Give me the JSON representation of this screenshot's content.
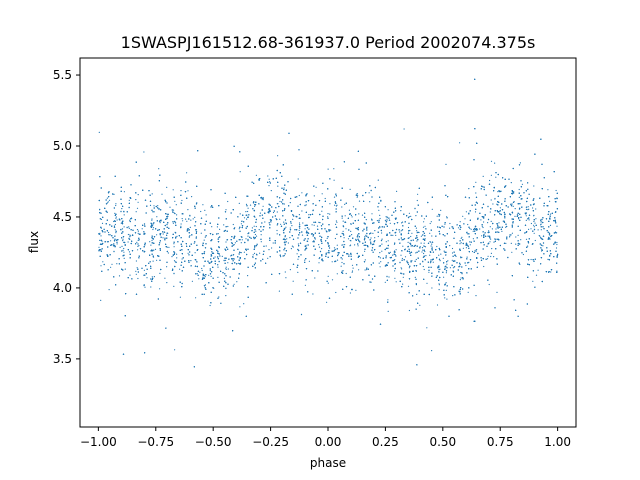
{
  "chart_data": {
    "type": "scatter",
    "title": "1SWASPJ161512.68-361937.0 Period 2002074.375s",
    "xlabel": "phase",
    "ylabel": "flux",
    "xlim": [
      -1.08,
      1.08
    ],
    "ylim": [
      3.02,
      5.62
    ],
    "xticks": [
      -1.0,
      -0.75,
      -0.5,
      -0.25,
      0.0,
      0.25,
      0.5,
      0.75,
      1.0
    ],
    "xtick_labels": [
      "−1.00",
      "−0.75",
      "−0.50",
      "−0.25",
      "0.00",
      "0.25",
      "0.50",
      "0.75",
      "1.00"
    ],
    "yticks": [
      3.5,
      4.0,
      4.5,
      5.0,
      5.5
    ],
    "ytick_labels": [
      "3.5",
      "4.0",
      "4.5",
      "5.0",
      "5.5"
    ],
    "grid": false,
    "series": [
      {
        "color": "#1f77b4",
        "marker_size": 0.6,
        "profile": {
          "phase": [
            -1.0,
            -0.9,
            -0.8,
            -0.7,
            -0.6,
            -0.5,
            -0.45,
            -0.4,
            -0.3,
            -0.2,
            -0.1,
            0.0,
            0.1,
            0.2,
            0.3,
            0.4,
            0.5,
            0.55,
            0.6,
            0.7,
            0.8,
            0.9,
            1.0
          ],
          "mean_flux": [
            4.42,
            4.4,
            4.36,
            4.38,
            4.33,
            4.24,
            4.2,
            4.3,
            4.45,
            4.52,
            4.4,
            4.38,
            4.36,
            4.34,
            4.3,
            4.28,
            4.24,
            4.2,
            4.32,
            4.44,
            4.52,
            4.4,
            4.42
          ]
        },
        "scatter_sd": 0.17,
        "n_points": 7000
      }
    ]
  }
}
